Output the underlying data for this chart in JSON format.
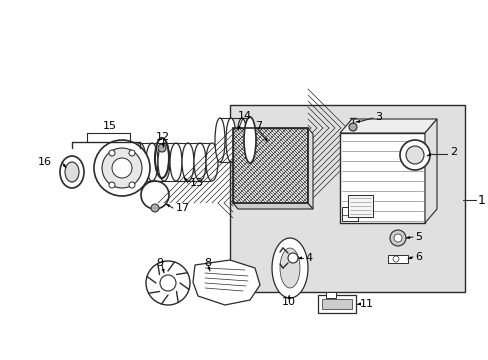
{
  "bg_color": "#ffffff",
  "box_bg": "#e0e0e0",
  "lc": "#2a2a2a",
  "fig_w": 4.89,
  "fig_h": 3.6,
  "dpi": 100
}
